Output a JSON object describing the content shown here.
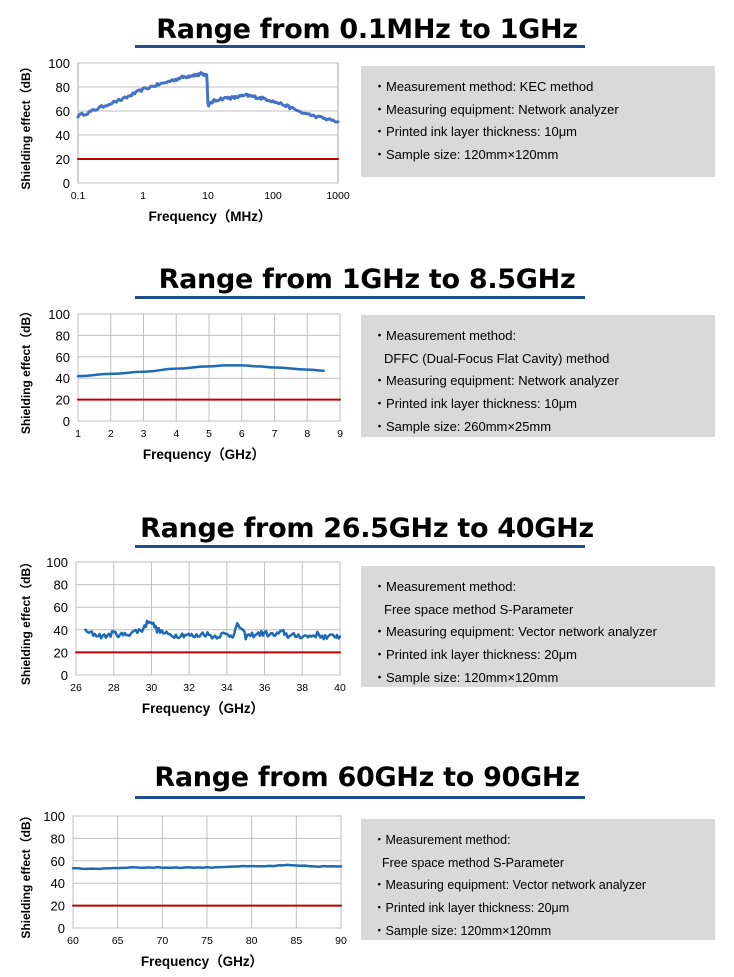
{
  "colors": {
    "series": "#4472c4",
    "series_dark": "#1f6ab5",
    "limit": "#c00000",
    "grid": "#bfbfbf",
    "title_rule": "#1f4e8c",
    "panel": "#d9d9d9"
  },
  "sections": [
    {
      "title": "Range from 0.1MHz to 1GHz",
      "info": [
        "・Measurement method: KEC method",
        "・Measuring equipment: Network analyzer",
        "・Printed ink layer thickness: 10μm",
        "・Sample size: 120mm×120mm"
      ]
    },
    {
      "title": "Range from 1GHz to 8.5GHz",
      "info": [
        "・Measurement method:",
        "DFFC (Dual-Focus Flat Cavity) method",
        "・Measuring equipment: Network analyzer",
        "・Printed ink layer thickness: 10μm",
        "・Sample size: 260mm×25mm"
      ]
    },
    {
      "title": "Range from 26.5GHz to 40GHz",
      "info": [
        "・Measurement method:",
        "Free space method S-Parameter",
        "・Measuring equipment: Vector network analyzer",
        "・Printed ink layer thickness: 20μm",
        "・Sample size: 120mm×120mm"
      ]
    },
    {
      "title": "Range from 60GHz to 90GHz",
      "info": [
        "・Measurement method:",
        "Free space method S-Parameter",
        "・Measuring equipment: Vector network analyzer",
        "・Printed ink layer thickness: 20μm",
        "・Sample size: 120mm×120mm"
      ]
    }
  ],
  "chart_data": [
    {
      "type": "line",
      "xscale": "log",
      "title": "Range from 0.1MHz to 1GHz",
      "xlabel": "Frequency（MHz）",
      "ylabel": "Shielding effect（dB）",
      "xlim": [
        0.1,
        1000
      ],
      "ylim": [
        0,
        100
      ],
      "xticks": [
        0.1,
        1,
        10,
        100,
        1000
      ],
      "xtick_labels": [
        "0.1",
        "1",
        "10",
        "100",
        "1000"
      ],
      "yticks": [
        0,
        20,
        40,
        60,
        80,
        100
      ],
      "vgrid": false,
      "series": [
        {
          "name": "Shielding effect",
          "x": [
            0.1,
            0.15,
            0.2,
            0.3,
            0.5,
            0.7,
            1,
            1.5,
            2,
            3,
            4,
            5,
            6,
            7,
            8,
            9,
            9.6,
            10,
            10.3,
            12,
            15,
            20,
            25,
            30,
            40,
            50,
            60,
            80,
            100,
            150,
            200,
            300,
            500,
            700,
            1000
          ],
          "y": [
            56,
            59,
            62,
            66,
            70,
            74,
            78,
            81,
            83,
            86,
            88,
            89,
            90,
            90,
            91,
            90,
            90,
            66,
            65,
            68,
            70,
            71,
            71,
            72,
            73,
            72,
            71,
            70,
            68,
            65,
            62,
            58,
            55,
            53,
            51
          ],
          "noise": 1.2
        },
        {
          "name": "Reference 20 dB",
          "x": [
            0.1,
            1000
          ],
          "y": [
            20,
            20
          ]
        }
      ]
    },
    {
      "type": "line",
      "xscale": "linear",
      "title": "Range from 1GHz to 8.5GHz",
      "xlabel": "Frequency（GHz）",
      "ylabel": "Shielding effect（dB）",
      "xlim": [
        1,
        9
      ],
      "ylim": [
        0,
        100
      ],
      "xticks": [
        1,
        2,
        3,
        4,
        5,
        6,
        7,
        8,
        9
      ],
      "xtick_labels": [
        "1",
        "2",
        "3",
        "4",
        "5",
        "6",
        "7",
        "8",
        "9"
      ],
      "yticks": [
        0,
        20,
        40,
        60,
        80,
        100
      ],
      "vgrid": true,
      "series": [
        {
          "name": "Shielding effect",
          "x": [
            1,
            2,
            3,
            4,
            5,
            5.5,
            6,
            6.5,
            7,
            8,
            8.5
          ],
          "y": [
            42,
            44,
            46,
            49,
            51,
            52,
            52,
            51,
            50,
            48,
            47
          ]
        },
        {
          "name": "Reference 20 dB",
          "x": [
            1,
            9
          ],
          "y": [
            20,
            20
          ]
        }
      ]
    },
    {
      "type": "line",
      "xscale": "linear",
      "title": "Range from 26.5GHz to 40GHz",
      "xlabel": "Frequency（GHz）",
      "ylabel": "Shielding effect（dB）",
      "xlim": [
        26,
        40
      ],
      "ylim": [
        0,
        100
      ],
      "xticks": [
        26,
        28,
        30,
        32,
        34,
        36,
        38,
        40
      ],
      "xtick_labels": [
        "26",
        "28",
        "30",
        "32",
        "34",
        "36",
        "38",
        "40"
      ],
      "yticks": [
        0,
        20,
        40,
        60,
        80,
        100
      ],
      "vgrid": true,
      "series": [
        {
          "name": "Shielding effect",
          "x": [
            26.5,
            27,
            27.5,
            28,
            28.5,
            29,
            29.5,
            29.9,
            30.3,
            30.8,
            31.3,
            31.8,
            32.3,
            32.8,
            33.3,
            33.8,
            34.3,
            34.6,
            35,
            35.5,
            36,
            36.5,
            37,
            37.3,
            37.8,
            38.3,
            38.8,
            39.3,
            39.8,
            40
          ],
          "y": [
            38,
            36,
            34,
            37,
            35,
            38,
            40,
            49,
            40,
            36,
            35,
            36,
            34,
            37,
            34,
            36,
            35,
            45,
            34,
            36,
            37,
            35,
            38,
            34,
            35,
            34,
            36,
            33,
            35,
            34
          ],
          "noise": 2.5
        },
        {
          "name": "Reference 20 dB",
          "x": [
            26,
            40
          ],
          "y": [
            20,
            20
          ]
        }
      ]
    },
    {
      "type": "line",
      "xscale": "linear",
      "title": "Range from 60GHz to 90GHz",
      "xlabel": "Frequency（GHz）",
      "ylabel": "Shielding effect（dB）",
      "xlim": [
        60,
        90
      ],
      "ylim": [
        0,
        100
      ],
      "xticks": [
        60,
        65,
        70,
        75,
        80,
        85,
        90
      ],
      "xtick_labels": [
        "60",
        "65",
        "70",
        "75",
        "80",
        "85",
        "90"
      ],
      "yticks": [
        0,
        20,
        40,
        60,
        80,
        100
      ],
      "vgrid": true,
      "series": [
        {
          "name": "Shielding effect",
          "x": [
            60,
            63,
            66,
            69,
            72,
            75,
            78,
            81,
            84,
            87,
            90
          ],
          "y": [
            53,
            53,
            54,
            54,
            54,
            54,
            55,
            55,
            56,
            55,
            55
          ],
          "noise": 0.4
        },
        {
          "name": "Reference 20 dB",
          "x": [
            60,
            90
          ],
          "y": [
            20,
            20
          ]
        }
      ]
    }
  ]
}
